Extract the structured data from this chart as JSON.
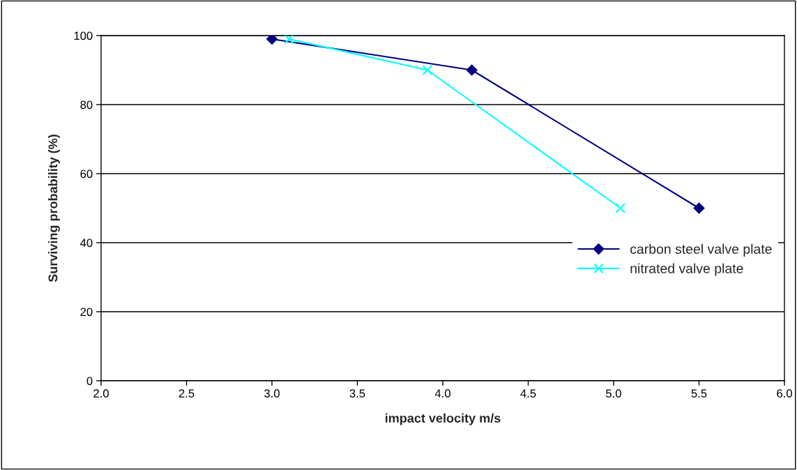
{
  "chart_data": {
    "type": "line",
    "xlabel": "impact velocity m/s",
    "ylabel": "Surviving probability (%)",
    "series": [
      {
        "name": "carbon steel valve plate",
        "color": "#000080",
        "marker": "diamond",
        "x": [
          3.0,
          4.17,
          5.5
        ],
        "values": [
          99,
          90,
          50
        ]
      },
      {
        "name": "nitrated valve plate",
        "color": "#00ffff",
        "marker": "cross",
        "x": [
          3.1,
          3.91,
          5.04
        ],
        "values": [
          99,
          90,
          50
        ]
      }
    ],
    "xlim": [
      2.0,
      6.0
    ],
    "xticks": [
      {
        "value": 2.0,
        "label": "2.0"
      },
      {
        "value": 2.5,
        "label": "2.5"
      },
      {
        "value": 3.0,
        "label": "3.0"
      },
      {
        "value": 3.5,
        "label": "3.5"
      },
      {
        "value": 4.0,
        "label": "4.0"
      },
      {
        "value": 4.5,
        "label": "4.5"
      },
      {
        "value": 5.0,
        "label": "5.0"
      },
      {
        "value": 5.5,
        "label": "5.5"
      },
      {
        "value": 6.0,
        "label": "6.0"
      }
    ],
    "ylim": [
      0,
      100
    ],
    "yticks": [
      0,
      20,
      40,
      60,
      80,
      100
    ],
    "grid": "y",
    "legend": "right"
  }
}
